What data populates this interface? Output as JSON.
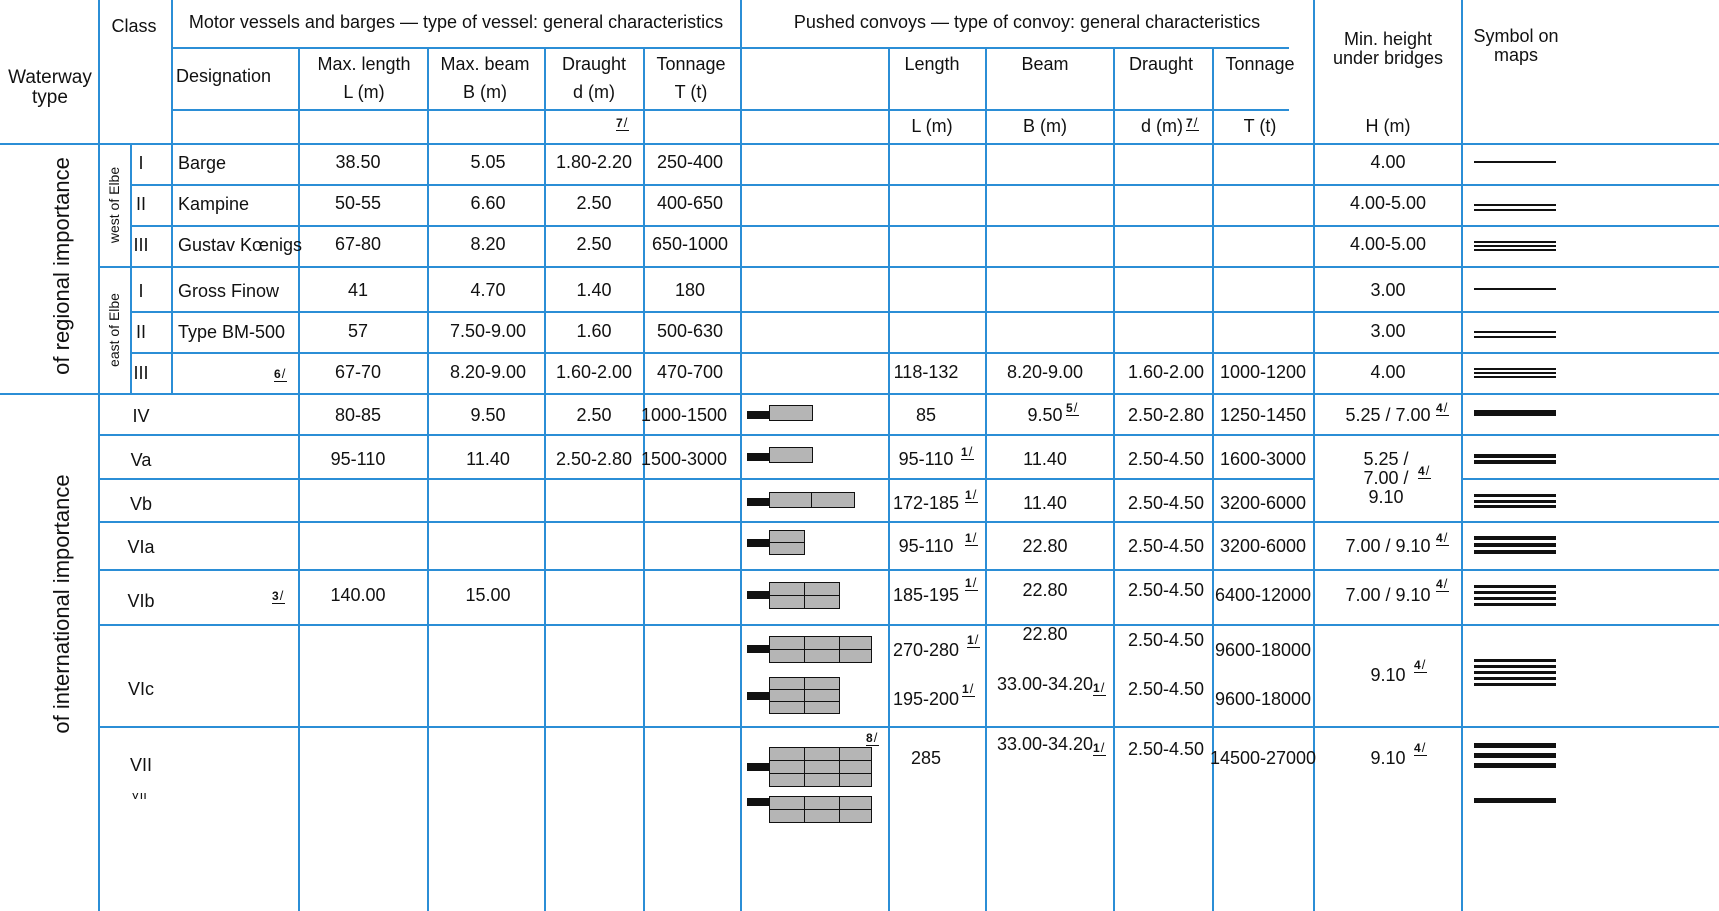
{
  "headers": {
    "waterway_type": "Waterway type",
    "class": "Class",
    "motor_group": "Motor vessels and barges — type of vessel: general characteristics",
    "pushed_group": "Pushed convoys — type of convoy: general characteristics",
    "designation": "Designation",
    "max_length": "Max. length",
    "max_length_unit": "L (m)",
    "max_beam": "Max. beam",
    "max_beam_unit": "B (m)",
    "draught": "Draught",
    "draught_unit": "d (m)",
    "tonnage": "Tonnage",
    "tonnage_unit": "T (t)",
    "length": "Length",
    "length_unit": "L (m)",
    "beam": "Beam",
    "beam_unit": "B (m)",
    "draught2": "Draught",
    "draught2_unit": "d (m)",
    "tonnage2": "Tonnage",
    "tonnage2_unit": "T (t)",
    "min_height": "Min. height under bridges",
    "min_height_unit": "H (m)",
    "symbol": "Symbol on maps",
    "fn7": "7"
  },
  "groups": {
    "regional": "of regional importance",
    "international": "of international importance",
    "west": "west of Elbe",
    "east": "east of Elbe"
  },
  "rows": {
    "w1": {
      "cls": "I",
      "des": "Barge",
      "len": "38.50",
      "beam": "5.05",
      "dr": "1.80-2.20",
      "ton": "250-400",
      "h": "4.00"
    },
    "w2": {
      "cls": "II",
      "des": "Kampine",
      "len": "50-55",
      "beam": "6.60",
      "dr": "2.50",
      "ton": "400-650",
      "h": "4.00-5.00"
    },
    "w3": {
      "cls": "III",
      "des": "Gustav Kœnigs",
      "len": "67-80",
      "beam": "8.20",
      "dr": "2.50",
      "ton": "650-1000",
      "h": "4.00-5.00"
    },
    "e1": {
      "cls": "I",
      "des": "Gross Finow",
      "len": "41",
      "beam": "4.70",
      "dr": "1.40",
      "ton": "180",
      "h": "3.00"
    },
    "e2": {
      "cls": "II",
      "des": "Type BM-500",
      "len": "57",
      "beam": "7.50-9.00",
      "dr": "1.60",
      "ton": "500-630",
      "h": "3.00"
    },
    "e3": {
      "cls": "III",
      "fn": "6",
      "len": "67-70",
      "beam": "8.20-9.00",
      "dr": "1.60-2.00",
      "ton": "470-700",
      "plen": "118-132",
      "pbeam": "8.20-9.00",
      "pdr": "1.60-2.00",
      "pton": "1000-1200",
      "h": "4.00"
    },
    "iv": {
      "cls": "IV",
      "len": "80-85",
      "beam": "9.50",
      "dr": "2.50",
      "ton": "1000-1500",
      "plen": "85",
      "pbeam": "9.50",
      "pbeam_fn": "5",
      "pdr": "2.50-2.80",
      "pton": "1250-1450",
      "h": "5.25 / 7.00",
      "h_fn": "4"
    },
    "va": {
      "cls": "Va",
      "len": "95-110",
      "beam": "11.40",
      "dr": "2.50-2.80",
      "ton": "1500-3000",
      "plen": "95-110",
      "plen_fn": "1",
      "pbeam": "11.40",
      "pdr": "2.50-4.50",
      "pton": "1600-3000"
    },
    "vab": {
      "h1": "5.25 /",
      "h2": "7.00 /",
      "h3": "9.10",
      "h_fn": "4"
    },
    "vb": {
      "cls": "Vb",
      "plen": "172-185",
      "plen_fn": "1",
      "pbeam": "11.40",
      "pdr": "2.50-4.50",
      "pton": "3200-6000"
    },
    "via": {
      "cls": "VIa",
      "plen": "95-110",
      "plen_fn": "1",
      "pbeam": "22.80",
      "pdr": "2.50-4.50",
      "pton": "3200-6000",
      "h": "7.00 / 9.10",
      "h_fn": "4"
    },
    "vib": {
      "cls": "VIb",
      "fn": "3",
      "len": "140.00",
      "beam": "15.00",
      "plen": "185-195",
      "plen_fn": "1",
      "pbeam": "22.80",
      "pdr": "2.50-4.50",
      "pton": "6400-12000",
      "h": "7.00 / 9.10",
      "h_fn": "4"
    },
    "vic": {
      "cls": "VIc",
      "plen1": "270-280",
      "plen1_fn": "1",
      "plen2": "195-200",
      "plen2_fn": "1",
      "pbeam1": "22.80",
      "pbeam2": "33.00-34.20",
      "pbeam2_fn": "1",
      "pdr1": "2.50-4.50",
      "pdr2": "2.50-4.50",
      "pton1": "9600-18000",
      "pton2": "9600-18000",
      "h": "9.10",
      "h_fn": "4"
    },
    "vii": {
      "cls": "VII",
      "img_fn": "8",
      "plen": "285",
      "pbeam": "33.00-34.20",
      "pbeam_fn": "1",
      "pdr": "2.50-4.50",
      "pton": "14500-27000",
      "h": "9.10",
      "h_fn": "4"
    }
  }
}
